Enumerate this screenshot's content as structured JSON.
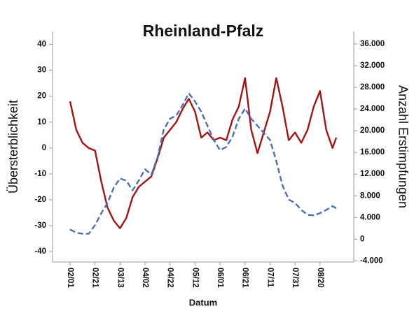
{
  "chart_data": {
    "type": "line",
    "title": "Rheinland-Pfalz",
    "xlabel": "Datum",
    "ylabel": "Übersterblichkeit",
    "y2label": "Anzahl Erstimpfungen",
    "x": [
      "02/01",
      "02/06",
      "02/11",
      "02/16",
      "02/21",
      "02/26",
      "03/03",
      "03/08",
      "03/13",
      "03/18",
      "03/23",
      "03/28",
      "04/02",
      "04/07",
      "04/12",
      "04/17",
      "04/22",
      "04/27",
      "05/02",
      "05/07",
      "05/12",
      "05/17",
      "05/22",
      "05/27",
      "06/01",
      "06/06",
      "06/11",
      "06/16",
      "06/21",
      "06/26",
      "07/01",
      "07/06",
      "07/11",
      "07/16",
      "07/21",
      "07/26",
      "07/31",
      "08/05",
      "08/10",
      "08/15",
      "08/20",
      "08/25",
      "08/30",
      "09/02"
    ],
    "xlim": [
      "01/18",
      "09/16"
    ],
    "xticks": [
      "02/01",
      "02/21",
      "03/13",
      "04/02",
      "04/22",
      "05/12",
      "06/01",
      "06/21",
      "07/11",
      "07/31",
      "08/20"
    ],
    "series": [
      {
        "color": "#a31515",
        "dash": false,
        "axis": "y",
        "values": [
          18,
          7,
          2,
          0,
          -1,
          -13,
          -23,
          -28,
          -31,
          -27,
          -19,
          -15,
          -13,
          -11,
          -4,
          4,
          7,
          10,
          15,
          19,
          14,
          4,
          6,
          3,
          4,
          3,
          11,
          16,
          27,
          7,
          -2,
          6,
          14,
          27,
          16,
          3,
          6,
          2,
          7,
          16,
          22,
          7,
          0,
          4
        ]
      },
      {
        "color": "#4a6fc0",
        "dash": true,
        "axis": "y2",
        "values": [
          1800,
          1200,
          1000,
          1000,
          2600,
          4800,
          6700,
          9500,
          11200,
          10800,
          9000,
          10800,
          12900,
          11900,
          15100,
          20200,
          22200,
          22800,
          24700,
          26900,
          25400,
          23500,
          20900,
          18300,
          16400,
          17000,
          18900,
          22200,
          24100,
          22200,
          20900,
          19600,
          18300,
          14400,
          9900,
          7300,
          6700,
          5400,
          4500,
          4400,
          4800,
          5400,
          6100,
          5700
        ]
      }
    ],
    "ylim": [
      -44,
      45
    ],
    "yticks": [
      -40,
      -30,
      -20,
      -10,
      0,
      10,
      20,
      30,
      40
    ],
    "y2lim": [
      -4200,
      38300
    ],
    "y2ticks": [
      {
        "value": -4000,
        "label": "-4.000"
      },
      0,
      {
        "value": 4000,
        "label": "4.000"
      },
      {
        "value": 8000,
        "label": "8.000"
      },
      {
        "value": 12000,
        "label": "12.000"
      },
      {
        "value": 16000,
        "label": "16.000"
      },
      {
        "value": 20000,
        "label": "20.000"
      },
      {
        "value": 24000,
        "label": "24.000"
      },
      {
        "value": 28000,
        "label": "28.000"
      },
      {
        "value": 32000,
        "label": "32.000"
      },
      {
        "value": 36000,
        "label": "36.000"
      }
    ]
  }
}
